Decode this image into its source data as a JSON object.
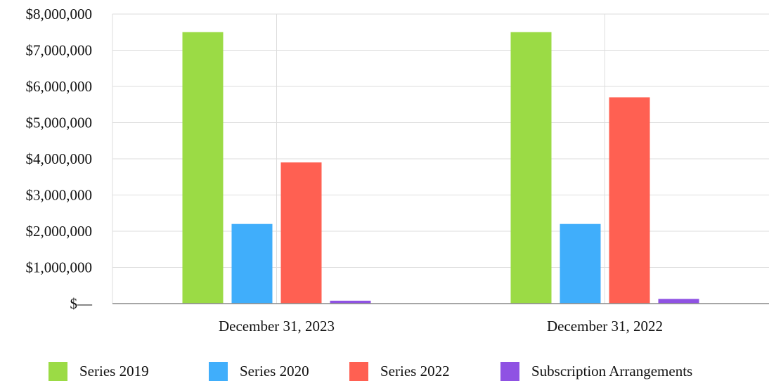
{
  "chart_data": {
    "type": "bar",
    "categories": [
      "December 31, 2023",
      "December 31, 2022"
    ],
    "series": [
      {
        "name": "Series 2019",
        "color": "#9bdb45",
        "values": [
          7500000,
          7500000
        ]
      },
      {
        "name": "Series 2020",
        "color": "#40aefb",
        "values": [
          2200000,
          2200000
        ]
      },
      {
        "name": "Series 2022",
        "color": "#ff6052",
        "values": [
          3900000,
          5700000
        ]
      },
      {
        "name": "Subscription Arrangements",
        "color": "#8f52e3",
        "values": [
          80000,
          130000
        ]
      }
    ],
    "ylim": [
      0,
      8000000
    ],
    "yticks": [
      0,
      1000000,
      2000000,
      3000000,
      4000000,
      5000000,
      6000000,
      7000000,
      8000000
    ],
    "ytick_labels": [
      "$—",
      "$1,000,000",
      "$2,000,000",
      "$3,000,000",
      "$4,000,000",
      "$5,000,000",
      "$6,000,000",
      "$7,000,000",
      "$8,000,000"
    ],
    "grid": true,
    "legend_position": "bottom"
  }
}
